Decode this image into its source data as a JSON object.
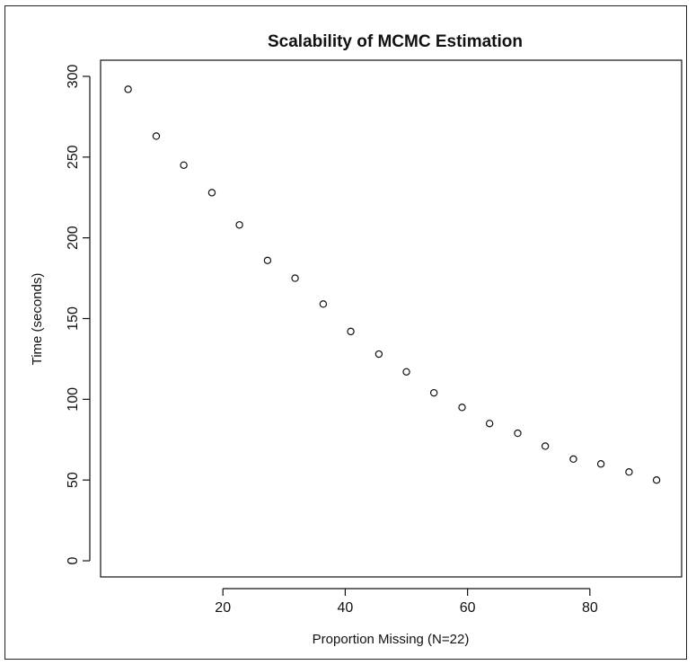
{
  "chart_data": {
    "type": "scatter",
    "title": "Scalability of MCMC Estimation",
    "xlabel": "Proportion Missing (N=22)",
    "ylabel": "Time (seconds)",
    "xlim": [
      0,
      95
    ],
    "ylim": [
      -10,
      310
    ],
    "xticks": [
      20,
      40,
      60,
      80
    ],
    "yticks": [
      0,
      50,
      100,
      150,
      200,
      250,
      300
    ],
    "grid": false,
    "legend": "none",
    "marker": "open-circle",
    "series": [
      {
        "x": [
          4.5,
          9.1,
          13.6,
          18.2,
          22.7,
          27.3,
          31.8,
          36.4,
          40.9,
          45.5,
          50.0,
          54.5,
          59.1,
          63.6,
          68.2,
          72.7,
          77.3,
          81.8,
          86.4,
          90.9
        ],
        "y": [
          292,
          263,
          245,
          228,
          208,
          186,
          175,
          159,
          142,
          128,
          117,
          104,
          95,
          85,
          79,
          71,
          63,
          60,
          55,
          50
        ]
      }
    ]
  }
}
